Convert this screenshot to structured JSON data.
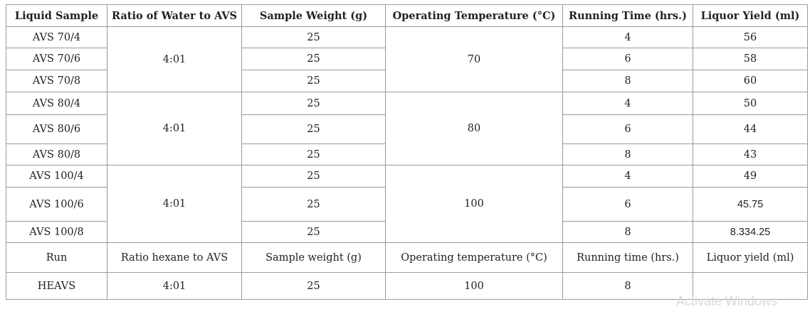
{
  "headers": [
    "Liquid Sample",
    "Ratio of Water to AVS",
    "Sample Weight (g)",
    "Operating Temperature (°C)",
    "Running Time (hrs.)",
    "Liquor Yield (ml)"
  ],
  "rows": [
    [
      "AVS 70/4",
      "4:01",
      "25",
      "70",
      "4",
      "56"
    ],
    [
      "AVS 70/6",
      "",
      "25",
      "",
      "6",
      "58"
    ],
    [
      "AVS 70/8",
      "",
      "25",
      "",
      "8",
      "60"
    ],
    [
      "AVS 80/4",
      "4:01",
      "25",
      "80",
      "4",
      "50"
    ],
    [
      "AVS 80/6",
      "",
      "25",
      "",
      "6",
      "44"
    ],
    [
      "AVS 80/8",
      "",
      "25",
      "",
      "8",
      "43"
    ],
    [
      "AVS 100/4",
      "4:01",
      "25",
      "100",
      "4",
      "49"
    ],
    [
      "AVS 100/6",
      "",
      "25",
      "",
      "6",
      "45.75"
    ],
    [
      "AVS 100/8",
      "",
      "25",
      "",
      "8",
      "8.334.25"
    ]
  ],
  "subheader": [
    "Run",
    "Ratio hexane to AVS",
    "Sample weight (g)",
    "Operating temperature (°C)",
    "Running time (hrs.)",
    "Liquor yield (ml)"
  ],
  "hexane_row": [
    "HEAVS",
    "4:01",
    "25",
    "100",
    "8",
    ""
  ],
  "watermark": "Activate Windows"
}
